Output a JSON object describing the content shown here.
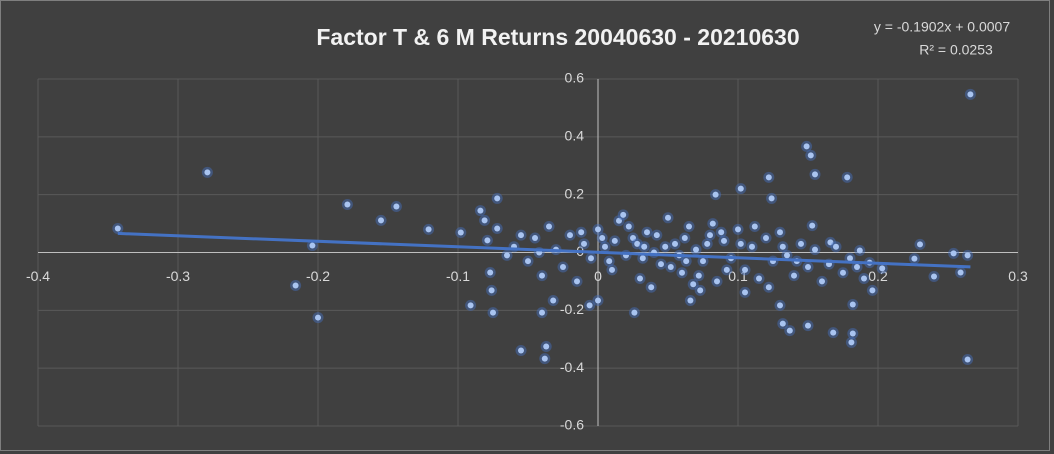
{
  "chart_data": {
    "type": "scatter",
    "title": "Factor T & 6 M Returns 20040630 - 20210630",
    "color": "#a9c4f0",
    "trendline": {
      "equation": "y = -0.1902x + 0.0007",
      "r_squared": "R² = 0.0253",
      "slope": -0.1902,
      "intercept": 0.0007,
      "color": "#4472c4"
    },
    "xlim": [
      -0.4,
      0.3
    ],
    "xticks": [
      -0.4,
      -0.3,
      -0.2,
      -0.1,
      0,
      0.1,
      0.2,
      0.3
    ],
    "ylim": [
      -0.6,
      0.6
    ],
    "yticks": [
      -0.6,
      -0.4,
      -0.2,
      0,
      0.2,
      0.4,
      0.6
    ],
    "grid": true,
    "x": [
      -0.343,
      -0.279,
      -0.216,
      -0.204,
      -0.2,
      -0.179,
      -0.155,
      -0.144,
      -0.121,
      -0.098,
      -0.091,
      -0.084,
      -0.081,
      -0.079,
      -0.077,
      -0.076,
      -0.075,
      -0.072,
      -0.072,
      -0.055,
      -0.038,
      -0.04,
      0.084,
      0.102,
      0.122,
      0.124,
      0.149,
      0.152,
      0.155,
      0.178,
      0.266,
      0.264,
      0.182,
      0.182,
      0.181,
      0.168,
      0.15,
      0.137,
      0.132,
      0.13,
      0.196,
      0.194,
      0.23,
      0.226,
      0.24,
      0.254,
      0.259,
      0.264,
      0.166,
      0.187,
      0.203,
      0.153,
      0.105,
      0.073,
      0.066,
      0,
      -0.006,
      0.026,
      -0.037,
      -0.032,
      -0.06,
      -0.05,
      -0.045,
      -0.04,
      -0.035,
      -0.03,
      -0.025,
      -0.02,
      -0.015,
      -0.01,
      -0.005,
      0,
      0.005,
      0.01,
      0.015,
      0.02,
      0.025,
      0.03,
      0.035,
      0.04,
      0.045,
      0.05,
      0.055,
      0.06,
      0.065,
      0.07,
      0.075,
      0.08,
      0.085,
      0.09,
      0.095,
      0.1,
      0.105,
      0.11,
      0.115,
      0.12,
      0.125,
      0.13,
      0.135,
      0.14,
      0.145,
      0.15,
      0.155,
      0.16,
      0.165,
      0.17,
      0.175,
      0.18,
      0.185,
      0.19,
      0.012,
      0.022,
      0.032,
      0.042,
      0.052,
      0.062,
      0.072,
      0.082,
      0.092,
      0.102,
      -0.012,
      0.008,
      0.018,
      0.028,
      0.038,
      0.048,
      0.058,
      0.068,
      0.078,
      0.088,
      -0.065,
      -0.055,
      -0.042,
      0.112,
      0.122,
      0.132,
      0.142,
      0.003,
      0.033,
      0.063
    ],
    "values": [
      0.083,
      0.277,
      -0.114,
      0.024,
      -0.225,
      0.166,
      0.111,
      0.159,
      0.08,
      0.069,
      -0.183,
      0.145,
      0.111,
      0.042,
      -0.069,
      -0.131,
      -0.208,
      0.083,
      0.187,
      -0.339,
      -0.367,
      -0.208,
      0.2,
      0.221,
      0.26,
      0.187,
      0.367,
      0.336,
      0.27,
      0.26,
      0.547,
      -0.37,
      -0.18,
      -0.28,
      -0.311,
      -0.277,
      -0.253,
      -0.27,
      -0.246,
      -0.183,
      -0.131,
      -0.035,
      0.028,
      -0.021,
      -0.083,
      -0.003,
      -0.069,
      -0.01,
      0.035,
      0.007,
      -0.055,
      0.093,
      -0.138,
      -0.131,
      -0.166,
      -0.166,
      -0.183,
      -0.208,
      -0.325,
      -0.166,
      0.02,
      -0.03,
      0.05,
      -0.08,
      0.09,
      0.01,
      -0.05,
      0.06,
      -0.1,
      0.03,
      -0.02,
      0.08,
      0.02,
      -0.06,
      0.11,
      -0.01,
      0.05,
      -0.09,
      0.07,
      0,
      -0.04,
      0.12,
      0.03,
      -0.07,
      0.09,
      0.01,
      -0.03,
      0.06,
      -0.1,
      0.04,
      -0.02,
      0.08,
      -0.06,
      0.02,
      -0.09,
      0.05,
      -0.03,
      0.07,
      -0.01,
      -0.08,
      0.03,
      -0.05,
      0.01,
      -0.1,
      -0.04,
      0.02,
      -0.07,
      -0.02,
      -0.05,
      -0.09,
      0.04,
      0.09,
      -0.02,
      0.06,
      -0.05,
      0.05,
      -0.08,
      0.1,
      -0.06,
      0.03,
      0.07,
      -0.03,
      0.13,
      0.03,
      -0.12,
      0.02,
      -0.01,
      -0.11,
      0.03,
      0.07,
      -0.01,
      0.06,
      0,
      0.09,
      -0.12,
      0.02,
      -0.03,
      0.05,
      0.02,
      -0.03
    ]
  }
}
